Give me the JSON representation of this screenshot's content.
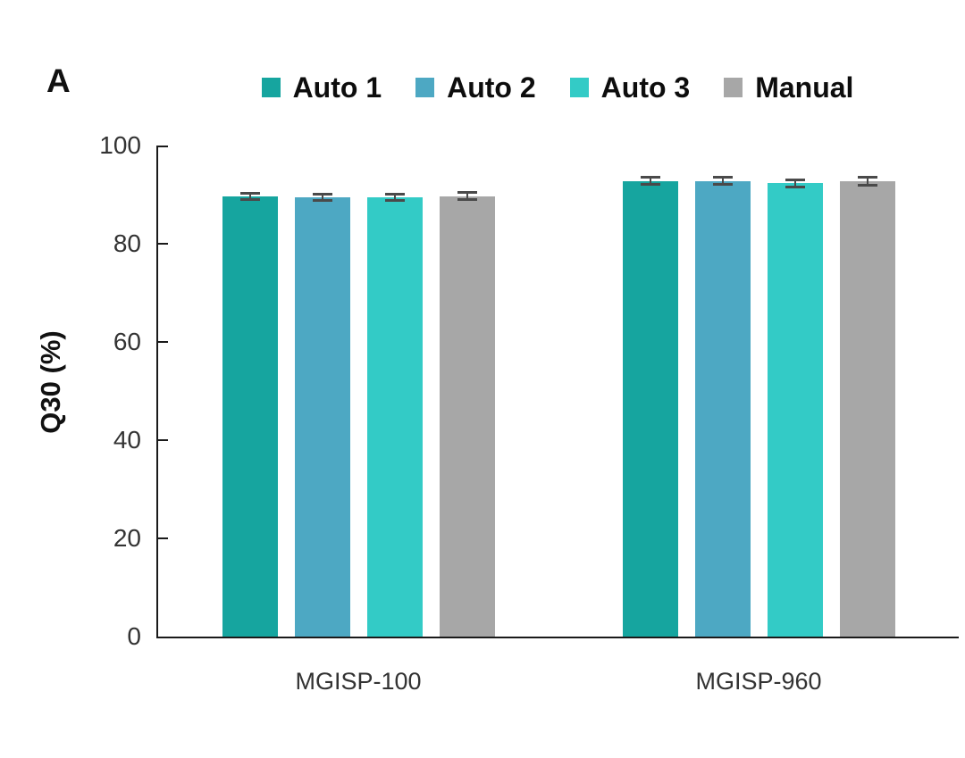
{
  "panel_label": "A",
  "colors": {
    "axis": "#1a1a1a",
    "error_bar": "#4a4a4a",
    "auto1": "#16A59F",
    "auto2": "#4DA8C3",
    "auto3": "#33CBC6",
    "manual": "#A7A7A7"
  },
  "chart_data": {
    "type": "bar",
    "xlabel": "",
    "ylabel": "Q30 (%)",
    "ylim": [
      0,
      100
    ],
    "yticks": [
      0,
      20,
      40,
      60,
      80,
      100
    ],
    "grid": false,
    "legend_position": "top",
    "error_bars": true,
    "categories": [
      "MGISP-100",
      "MGISP-960"
    ],
    "series": [
      {
        "name": "Auto 1",
        "color": "#16A59F",
        "values": [
          89.6,
          92.8
        ],
        "errors": [
          0.4,
          0.4
        ]
      },
      {
        "name": "Auto 2",
        "color": "#4DA8C3",
        "values": [
          89.4,
          92.8
        ],
        "errors": [
          0.4,
          0.4
        ]
      },
      {
        "name": "Auto 3",
        "color": "#33CBC6",
        "values": [
          89.5,
          92.3
        ],
        "errors": [
          0.4,
          0.4
        ]
      },
      {
        "name": "Manual",
        "color": "#A7A7A7",
        "values": [
          89.7,
          92.7
        ],
        "errors": [
          0.4,
          0.5
        ]
      }
    ]
  }
}
